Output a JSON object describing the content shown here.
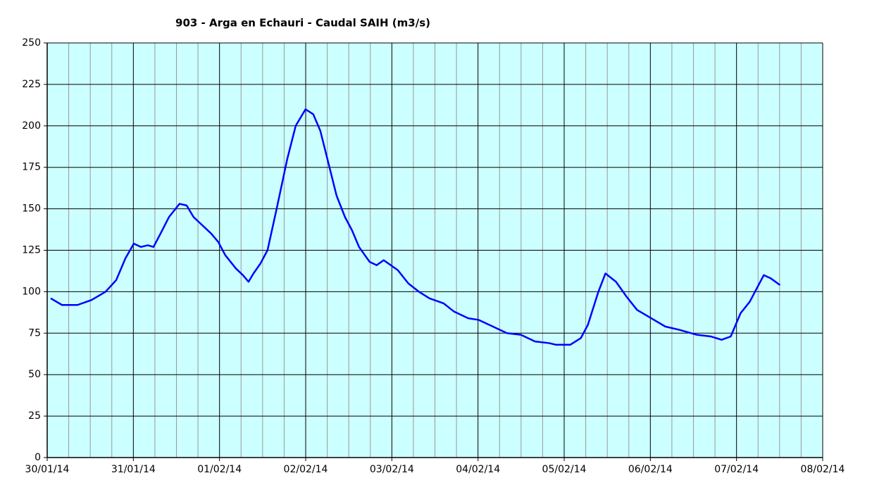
{
  "chart_data": {
    "type": "line",
    "title": "903 - Arga en Echauri - Caudal SAIH (m3/s)",
    "x": [
      0.041,
      0.172,
      0.351,
      0.515,
      0.678,
      0.801,
      0.907,
      1.005,
      1.087,
      1.168,
      1.234,
      1.315,
      1.413,
      1.536,
      1.618,
      1.699,
      1.822,
      1.904,
      1.985,
      2.067,
      2.19,
      2.271,
      2.337,
      2.394,
      2.475,
      2.557,
      2.663,
      2.786,
      2.884,
      2.998,
      3.088,
      3.17,
      3.252,
      3.358,
      3.456,
      3.538,
      3.619,
      3.742,
      3.824,
      3.905,
      3.987,
      4.069,
      4.191,
      4.314,
      4.436,
      4.6,
      4.722,
      4.886,
      5.008,
      5.172,
      5.335,
      5.498,
      5.662,
      5.825,
      5.907,
      6.07,
      6.193,
      6.275,
      6.397,
      6.479,
      6.601,
      6.724,
      6.846,
      7.01,
      7.173,
      7.337,
      7.541,
      7.704,
      7.827,
      7.933,
      7.99,
      8.047,
      8.154,
      8.235,
      8.317,
      8.399,
      8.505
    ],
    "series": [
      {
        "color": "#0000ff",
        "values": [
          96,
          92,
          92,
          95,
          100,
          107,
          120,
          129,
          127,
          128,
          127,
          135,
          145,
          153,
          152,
          145,
          139,
          135,
          130,
          122,
          114,
          110,
          106,
          111,
          117,
          125,
          150,
          180,
          200,
          210,
          207,
          197,
          180,
          158,
          145,
          137,
          127,
          118,
          116,
          119,
          116,
          113,
          105,
          100,
          96,
          93,
          88,
          84,
          83,
          79,
          75,
          74,
          70,
          69,
          68,
          68,
          72,
          80,
          100,
          111,
          106,
          97,
          89,
          84,
          79,
          77,
          74,
          73,
          71,
          73,
          80,
          87,
          94,
          102,
          110,
          108,
          104
        ]
      }
    ],
    "xlim": [
      0,
      9
    ],
    "xticks": [
      {
        "value": 0,
        "label": "30/01/14"
      },
      {
        "value": 1,
        "label": "31/01/14"
      },
      {
        "value": 2,
        "label": "01/02/14"
      },
      {
        "value": 3,
        "label": "02/02/14"
      },
      {
        "value": 4,
        "label": "03/02/14"
      },
      {
        "value": 5,
        "label": "04/02/14"
      },
      {
        "value": 6,
        "label": "05/02/14"
      },
      {
        "value": 7,
        "label": "06/02/14"
      },
      {
        "value": 8,
        "label": "07/02/14"
      },
      {
        "value": 9,
        "label": "08/02/14"
      }
    ],
    "ylim": [
      0,
      250
    ],
    "yticks": [
      0,
      25,
      50,
      75,
      100,
      125,
      150,
      175,
      200,
      225,
      250
    ],
    "grid": true,
    "background": "#ccffff"
  }
}
